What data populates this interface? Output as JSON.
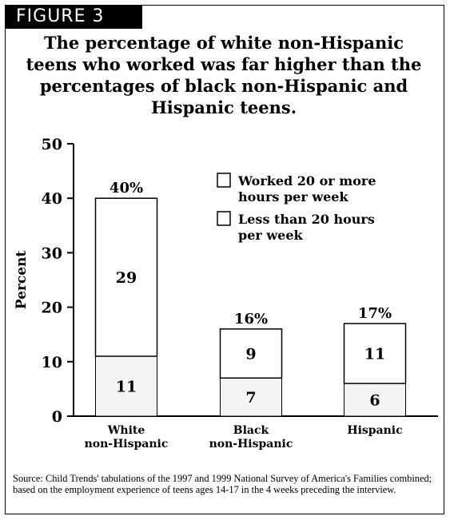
{
  "figure_label": "FIGURE 3",
  "title": "The percentage of white non-Hispanic teens who worked was far higher than the percentages of black non-Hispanic and Hispanic teens.",
  "source": "Source: Child Trends' tabulations of the 1997 and 1999 National Survey of America's Families combined; based on the employment experience of teens ages 14-17 in the 4 weeks preceding the interview.",
  "chart_data": {
    "type": "bar",
    "stacked": true,
    "ylabel": "Percent",
    "xlabel": "",
    "ylim": [
      0,
      50
    ],
    "yticks": [
      0,
      10,
      20,
      30,
      40,
      50
    ],
    "grid": false,
    "legend_position": "top-right",
    "categories": [
      "White non-Hispanic",
      "Black non-Hispanic",
      "Hispanic"
    ],
    "category_lines": [
      [
        "White",
        "non-Hispanic"
      ],
      [
        "Black",
        "non-Hispanic"
      ],
      [
        "Hispanic"
      ]
    ],
    "series": [
      {
        "name": "Less than 20 hours per week",
        "legend_lines": [
          "Less than 20 hours",
          "per week"
        ],
        "values": [
          11,
          7,
          6
        ],
        "fill": "#f4f4f4"
      },
      {
        "name": "Worked 20 or more hours per week",
        "legend_lines": [
          "Worked 20 or more",
          "hours per week"
        ],
        "values": [
          29,
          9,
          11
        ],
        "fill": "#ffffff"
      }
    ],
    "totals": [
      "40%",
      "16%",
      "17%"
    ]
  }
}
